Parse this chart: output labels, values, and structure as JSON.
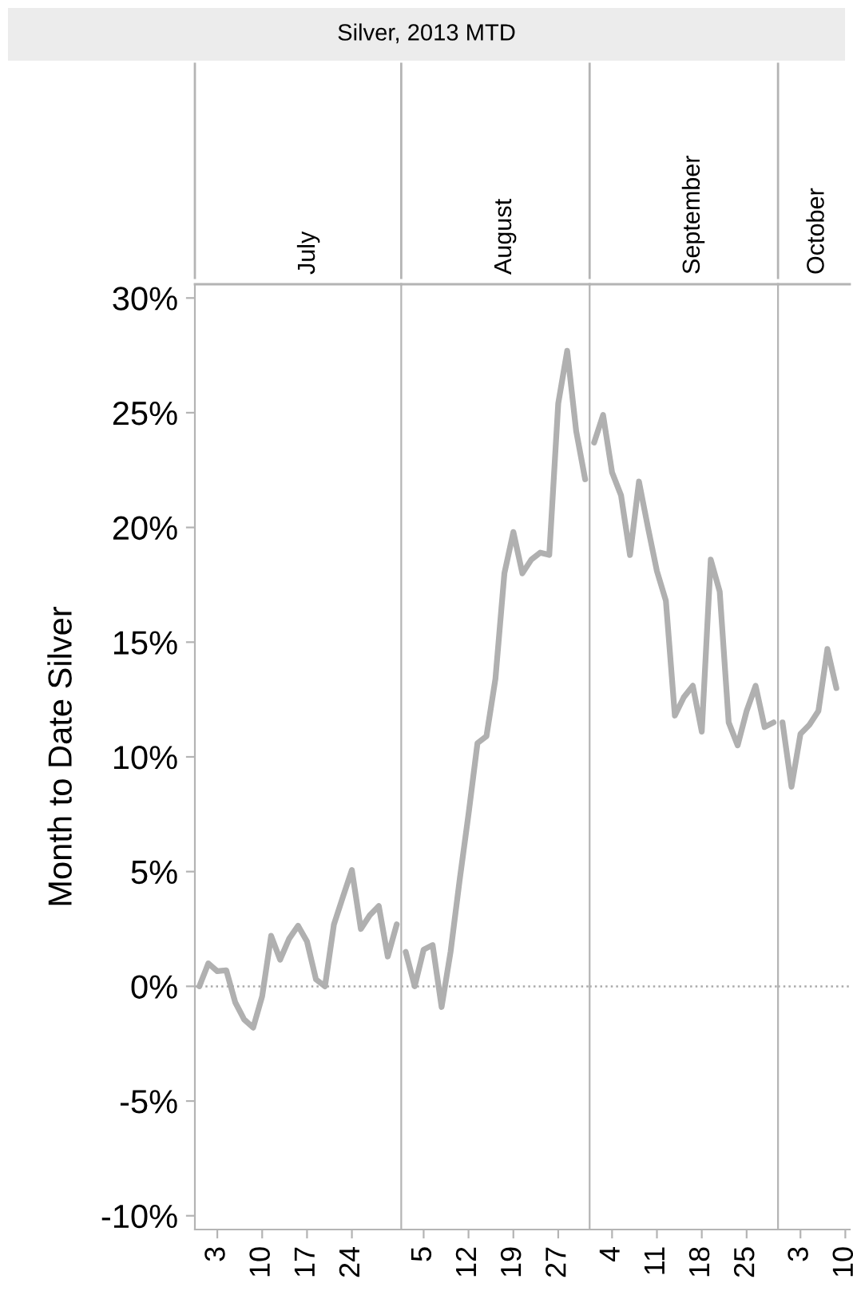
{
  "chart_data": [
    {
      "type": "line",
      "title": "Silver, 2013 MTD",
      "subtitle": "July",
      "ylabel": "Month to Date Silver",
      "color": "#b0b0b0",
      "categories": [
        null,
        null,
        "3",
        null,
        null,
        null,
        null,
        "10",
        null,
        null,
        null,
        null,
        "17",
        null,
        null,
        null,
        null,
        "24",
        null,
        null,
        null,
        null,
        null
      ],
      "values": [
        0.0,
        1.0,
        0.66,
        0.7,
        -0.7,
        -1.45,
        -1.8,
        -0.43,
        2.2,
        1.16,
        2.07,
        2.64,
        1.95,
        0.3,
        0.0,
        2.7,
        3.9,
        5.07,
        2.5,
        3.1,
        3.5,
        1.3,
        2.7
      ],
      "ylim": [
        -10.6,
        30.6
      ],
      "yticks": [
        {
          "value": -10,
          "label": "-10%"
        },
        {
          "value": -5,
          "label": "-5%"
        },
        {
          "value": 0,
          "label": "0%"
        },
        {
          "value": 5,
          "label": "5%"
        },
        {
          "value": 10,
          "label": "10%"
        },
        {
          "value": 15,
          "label": "15%"
        },
        {
          "value": 20,
          "label": "20%"
        },
        {
          "value": 25,
          "label": "25%"
        },
        {
          "value": 30,
          "label": "30%"
        }
      ],
      "ref_lines": [
        {
          "axis": "y",
          "value": 0,
          "color": "#aaaaaa",
          "line_style": "dotted"
        }
      ]
    },
    {
      "type": "line",
      "subtitle": "August",
      "color": "#b0b0b0",
      "tick_labels": "x",
      "categories": [
        null,
        null,
        "5",
        null,
        null,
        null,
        null,
        "12",
        null,
        null,
        null,
        null,
        "19",
        null,
        null,
        null,
        null,
        "27",
        null,
        null,
        null
      ],
      "values": [
        1.5,
        0.0,
        1.6,
        1.8,
        -0.9,
        1.5,
        4.6,
        7.5,
        10.6,
        10.9,
        13.4,
        18.0,
        19.8,
        18.0,
        18.6,
        18.9,
        18.8,
        25.4,
        27.7,
        24.2,
        22.1
      ],
      "ylim": [
        -10.6,
        30.6
      ],
      "ref_lines": [
        {
          "axis": "y",
          "value": 0,
          "color": "#aaaaaa",
          "line_style": "dotted"
        }
      ]
    },
    {
      "type": "line",
      "subtitle": "September",
      "color": "#b0b0b0",
      "tick_labels": "x",
      "categories": [
        null,
        null,
        "4",
        null,
        null,
        null,
        null,
        "11",
        null,
        null,
        null,
        null,
        "18",
        null,
        null,
        null,
        null,
        "25",
        null,
        null,
        null
      ],
      "values": [
        23.7,
        24.9,
        22.4,
        21.4,
        18.8,
        22.0,
        20.0,
        18.1,
        16.8,
        11.8,
        12.6,
        13.1,
        11.1,
        18.6,
        17.2,
        11.5,
        10.5,
        12.0,
        13.1,
        11.3,
        11.5
      ],
      "ylim": [
        -10.6,
        30.6
      ],
      "ref_lines": [
        {
          "axis": "y",
          "value": 0,
          "color": "#aaaaaa",
          "line_style": "dotted"
        }
      ]
    },
    {
      "type": "line",
      "subtitle": "October",
      "color": "#b0b0b0",
      "tick_labels": "x",
      "categories": [
        null,
        null,
        "3",
        null,
        null,
        null,
        null,
        "10"
      ],
      "values": [
        11.5,
        8.7,
        11.0,
        11.4,
        12.0,
        14.7,
        13.0,
        null
      ],
      "ylim": [
        -10.6,
        30.6
      ],
      "ref_lines": [
        {
          "axis": "y",
          "value": 0,
          "color": "#aaaaaa",
          "line_style": "dotted"
        }
      ]
    }
  ]
}
